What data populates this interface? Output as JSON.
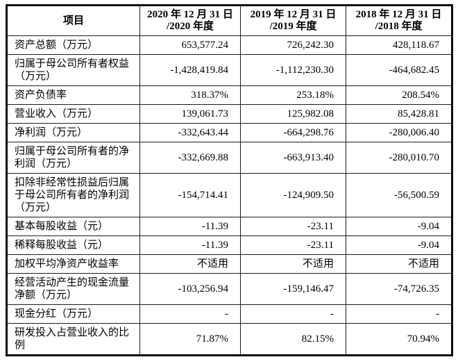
{
  "colors": {
    "background": "#ffffff",
    "text": "#000000",
    "grid_border": "#1c1c1c",
    "outer_border": "#0a0a0a"
  },
  "table": {
    "header": {
      "item_label": "项目",
      "periods": [
        {
          "line1": "2020 年 12 月 31 日",
          "line2": "/2020 年度"
        },
        {
          "line1": "2019 年 12 月 31 日",
          "line2": "/2019 年度"
        },
        {
          "line1": "2018 年 12 月 31 日",
          "line2": "/2018 年度"
        }
      ]
    },
    "rows": [
      {
        "label": "资产总额（万元）",
        "values": [
          "653,577.24",
          "726,242.30",
          "428,118.67"
        ]
      },
      {
        "label": "归属于母公司所有者权益（万元）",
        "values": [
          "-1,428,419.84",
          "-1,112,230.30",
          "-464,682.45"
        ]
      },
      {
        "label": "资产负债率",
        "values": [
          "318.37%",
          "253.18%",
          "208.54%"
        ]
      },
      {
        "label": "营业收入（万元）",
        "values": [
          "139,061.73",
          "125,982.08",
          "85,428.81"
        ]
      },
      {
        "label": "净利润（万元）",
        "values": [
          "-332,643.44",
          "-664,298.76",
          "-280,006.40"
        ]
      },
      {
        "label": "归属于母公司所有者的净利润（万元）",
        "values": [
          "-332,669.88",
          "-663,913.40",
          "-280,010.70"
        ]
      },
      {
        "label": "扣除非经常性损益后归属于母公司所有者的净利润（万元）",
        "values": [
          "-154,714.41",
          "-124,909.50",
          "-56,500.59"
        ]
      },
      {
        "label": "基本每股收益（元）",
        "values": [
          "-11.39",
          "-23.11",
          "-9.04"
        ]
      },
      {
        "label": "稀释每股收益（元）",
        "values": [
          "-11.39",
          "-23.11",
          "-9.04"
        ]
      },
      {
        "label": "加权平均净资产收益率",
        "values": [
          "不适用",
          "不适用",
          "不适用"
        ]
      },
      {
        "label": "经营活动产生的现金流量净额（万元）",
        "values": [
          "-103,256.94",
          "-159,146.47",
          "-74,726.35"
        ]
      },
      {
        "label": "现金分红（万元）",
        "values": [
          "-",
          "-",
          "-"
        ]
      },
      {
        "label": "研发投入占营业收入的比例",
        "values": [
          "71.87%",
          "82.15%",
          "70.94%"
        ]
      }
    ]
  }
}
